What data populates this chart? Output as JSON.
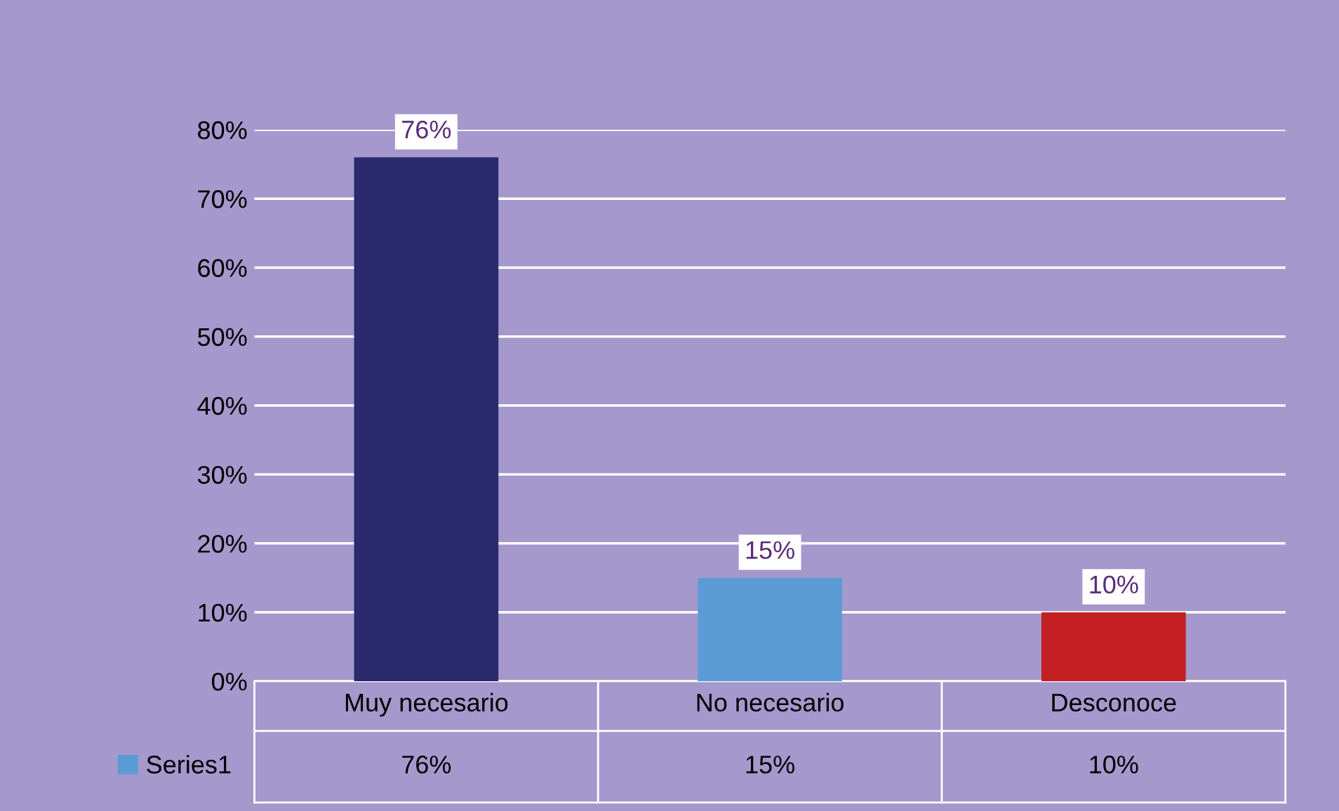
{
  "chart_data": {
    "type": "bar",
    "categories": [
      "Muy necesario",
      "No necesario",
      "Desconoce"
    ],
    "series": [
      {
        "name": "Series1",
        "color": "#5b9bd5",
        "colors": [
          "#2b2a6c",
          "#5b9bd5",
          "#c42024"
        ],
        "values": [
          76,
          15,
          10
        ],
        "value_labels": [
          "76%",
          "15%",
          "10%"
        ]
      }
    ],
    "ylim": [
      0,
      80
    ],
    "yticks": [
      {
        "value": 0,
        "label": "0%"
      },
      {
        "value": 10,
        "label": "10%"
      },
      {
        "value": 20,
        "label": "20%"
      },
      {
        "value": 30,
        "label": "30%"
      },
      {
        "value": 40,
        "label": "40%"
      },
      {
        "value": 50,
        "label": "50%"
      },
      {
        "value": 60,
        "label": "60%"
      },
      {
        "value": 70,
        "label": "70%"
      },
      {
        "value": 80,
        "label": "80%"
      }
    ],
    "grid": "y",
    "legend": "bottom left"
  }
}
